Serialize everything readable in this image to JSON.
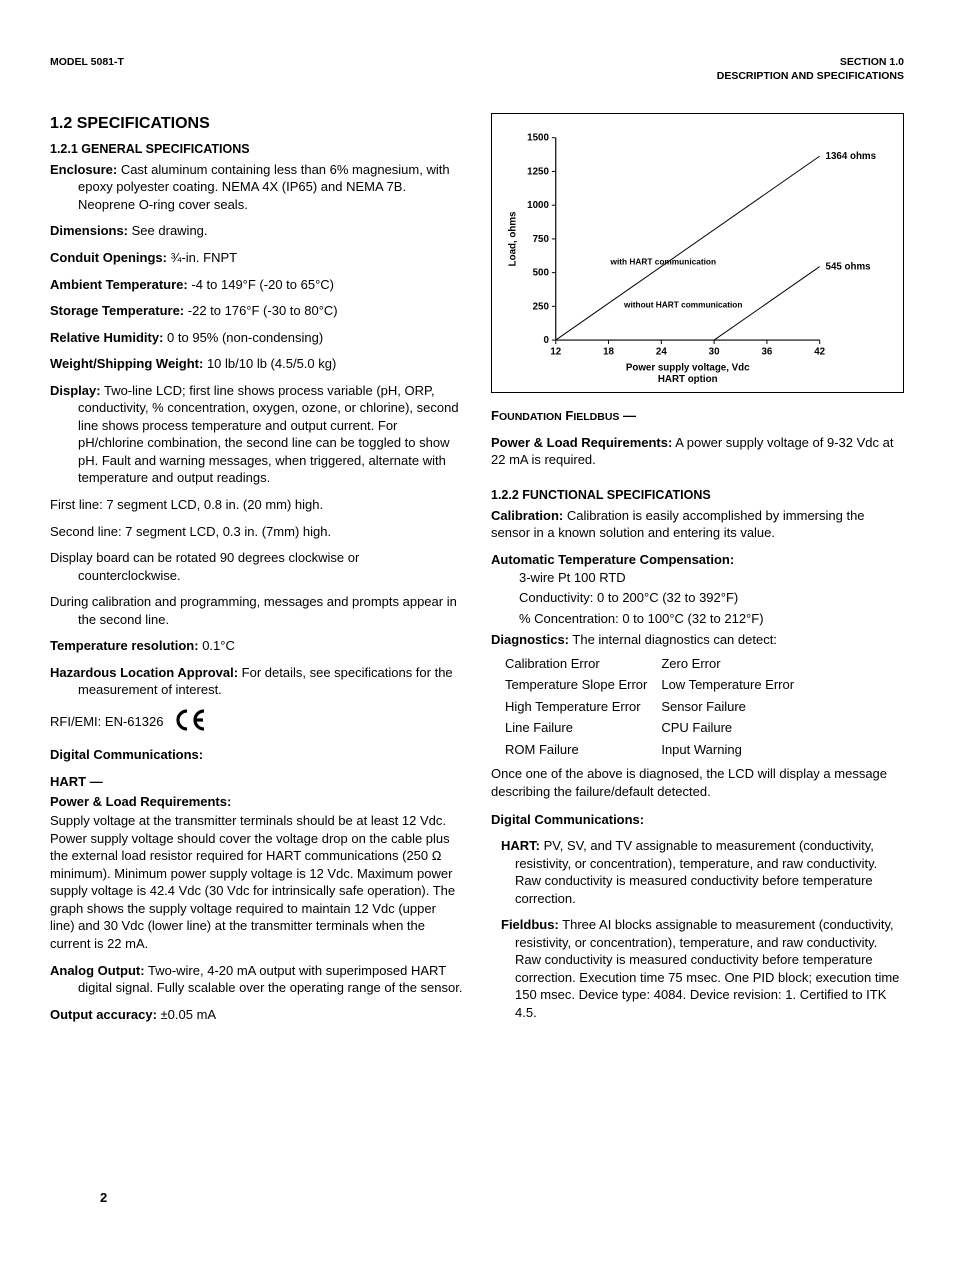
{
  "header": {
    "left": "MODEL 5081-T",
    "right_line1": "SECTION 1.0",
    "right_line2": "DESCRIPTION AND SPECIFICATIONS"
  },
  "page_number": "2",
  "left_col": {
    "title": "1.2  SPECIFICATIONS",
    "sub1": "1.2.1 GENERAL SPECIFICATIONS",
    "enclosure_lbl": "Enclosure:",
    "enclosure": "Cast aluminum containing less than 6% magnesium, with epoxy polyester coating. NEMA 4X (IP65) and NEMA 7B. Neoprene O-ring cover seals.",
    "dimensions_lbl": "Dimensions:",
    "dimensions": "See drawing.",
    "conduit_lbl": "Conduit Openings:",
    "conduit": "¾-in. FNPT",
    "ambient_lbl": "Ambient Temperature:",
    "ambient": "-4 to 149°F (-20 to 65°C)",
    "storage_lbl": "Storage Temperature:",
    "storage": "-22 to 176°F (-30 to 80°C)",
    "humidity_lbl": "Relative Humidity:",
    "humidity": "0 to 95% (non-condensing)",
    "weight_lbl": "Weight/Shipping Weight:",
    "weight": "10 lb/10 lb (4.5/5.0 kg)",
    "display_lbl": "Display:",
    "display": "Two-line LCD; first line shows process variable (pH, ORP, conductivity, % concentration, oxygen, ozone, or chlorine), second line shows process temperature and output current. For pH/chlorine combination, the second line can be toggled to show pH. Fault and warning messages, when triggered, alternate with temperature and output readings.",
    "first_line": "First line: 7 segment LCD, 0.8 in. (20 mm) high.",
    "second_line": "Second line: 7 segment LCD, 0.3 in. (7mm) high.",
    "rotate": "Display board can be rotated 90 degrees clockwise or counterclockwise.",
    "calib_msg": "During calibration and programming, messages and prompts appear in the second line.",
    "tempres_lbl": "Temperature resolution:",
    "tempres": "0.1°C",
    "hazloc_lbl": "Hazardous Location Approval:",
    "hazloc": "For details, see specifications for the measurement of interest.",
    "rfi_lbl": "RFI/EMI:",
    "rfi": "EN-61326",
    "digcom": "Digital Communications:",
    "hart_title": "HART —",
    "hart_sub": "Power & Load Requirements:",
    "hart_body": "Supply voltage at the transmitter terminals should be at least 12 Vdc. Power supply voltage should cover the voltage drop on the cable plus the external load resistor required for HART communications (250 Ω minimum). Minimum power supply voltage is 12 Vdc. Maximum power supply voltage is 42.4 Vdc (30 Vdc for intrinsically safe operation). The graph shows the supply voltage required to maintain 12 Vdc (upper line) and 30 Vdc  (lower line) at the transmitter terminals when the current is  22 mA.",
    "analog_lbl": "Analog Output:",
    "analog": "Two-wire, 4-20 mA output with superimposed HART digital signal. Fully scalable over the operating range of the sensor.",
    "outacc_lbl": "Output accuracy:",
    "outacc": "±0.05 mA"
  },
  "right_col": {
    "foundation_title": "FOUNDATION FIELDBUS —",
    "power_lbl": "Power & Load Requirements:",
    "power_body": "A power supply voltage of 9-32 Vdc at 22 mA is required.",
    "sub2": "1.2.2 FUNCTIONAL SPECIFICATIONS",
    "calib_lbl": "Calibration:",
    "calib_body": "Calibration is easily accomplished by immersing the sensor in a known solution and entering its value.",
    "atc_title": "Automatic Temperature Compensation:",
    "atc_l1": "3-wire Pt 100 RTD",
    "atc_l2": "Conductivity: 0 to 200°C (32 to 392°F)",
    "atc_l3": "% Concentration: 0 to 100°C (32 to 212°F)",
    "diag_lbl": "Diagnostics:",
    "diag_body": "The internal diagnostics can detect:",
    "diag_rows": [
      [
        "Calibration Error",
        "Zero Error"
      ],
      [
        "Temperature Slope Error",
        "Low Temperature Error"
      ],
      [
        "High Temperature Error",
        "Sensor Failure"
      ],
      [
        "Line Failure",
        "CPU Failure"
      ],
      [
        "ROM Failure",
        "Input Warning"
      ]
    ],
    "diag_after": "Once one of the above is diagnosed, the LCD will display a message describing the failure/default detected.",
    "digcom2": "Digital Communications:",
    "hart2_lbl": "HART:",
    "hart2_body": "PV, SV, and TV assignable to measurement (conductivity, resistivity, or concentration), temperature, and raw conductivity. Raw conductivity is measured conductivity before temperature correction.",
    "fieldbus_lbl": "Fieldbus:",
    "fieldbus_body": "Three AI blocks assignable to measurement (conductivity, resistivity, or concentration), temperature, and raw conductivity. Raw conductivity is measured conductivity before temperature correction. Execution time 75 msec. One PID block; execution time 150 msec. Device type: 4084. Device revision: 1. Certified to ITK 4.5."
  },
  "chart": {
    "type": "line",
    "xlabel": "Power supply voltage, Vdc",
    "sublabel": "HART option",
    "ylabel": "Load, ohms",
    "x_ticks": [
      12,
      18,
      24,
      30,
      36,
      42
    ],
    "y_ticks": [
      0,
      250,
      500,
      750,
      1000,
      1250,
      1500
    ],
    "xlim": [
      12,
      42
    ],
    "ylim": [
      0,
      1500
    ],
    "annotations": {
      "top_right": "1364 ohms",
      "mid_right": "545 ohms",
      "upper_line": "with HART communication",
      "lower_line": "without HART communication"
    },
    "series": [
      {
        "name": "with_hart",
        "points": [
          [
            12,
            0
          ],
          [
            42,
            1364
          ]
        ],
        "color": "#000000",
        "width": 1
      },
      {
        "name": "without_hart",
        "points": [
          [
            30,
            0
          ],
          [
            42,
            545
          ]
        ],
        "color": "#000000",
        "width": 1
      }
    ],
    "background_color": "#ffffff",
    "axis_color": "#000000",
    "font_size": 10
  }
}
